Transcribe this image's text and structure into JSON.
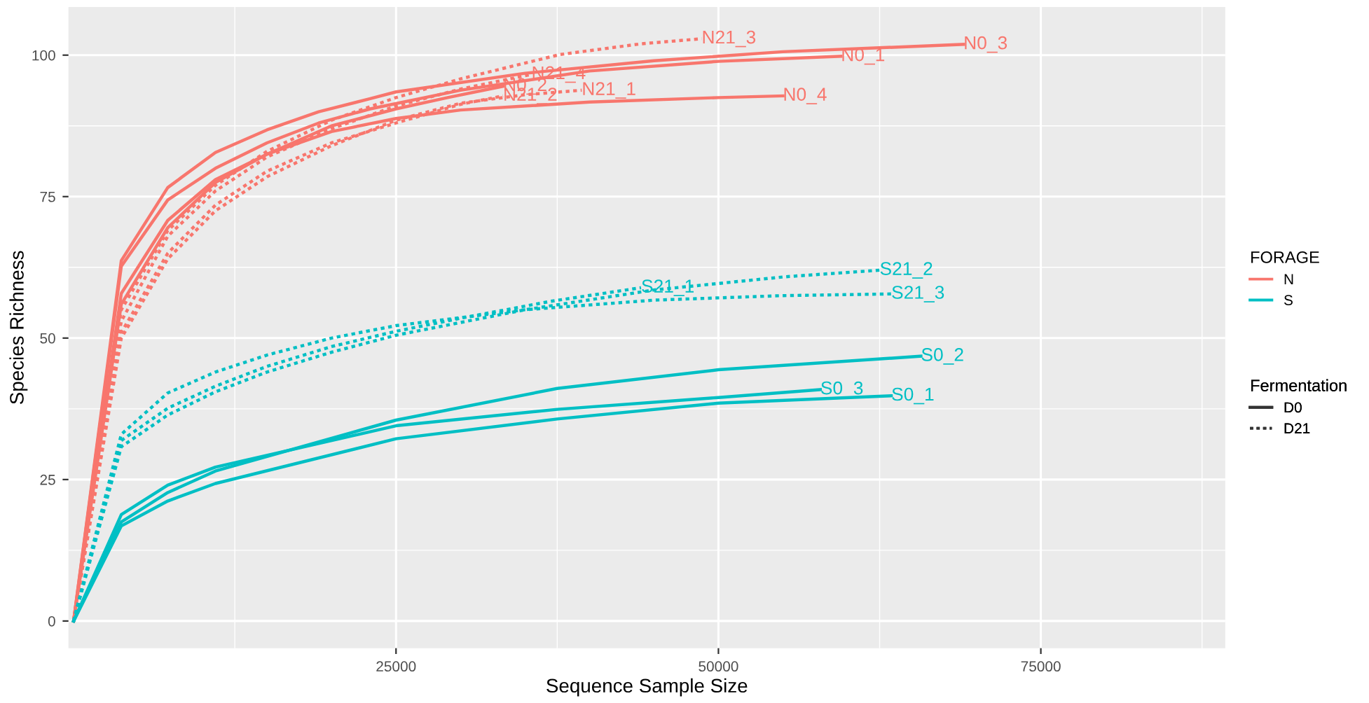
{
  "chart_data": {
    "type": "line",
    "xlabel": "Sequence Sample Size",
    "ylabel": "Species Richness",
    "xlim": [
      -400,
      89300
    ],
    "ylim": [
      -4.8,
      108.5
    ],
    "xticks": [
      25000,
      50000,
      75000
    ],
    "yticks": [
      0,
      25,
      50,
      75,
      100
    ],
    "grid": true,
    "legend": "right",
    "marker": "none",
    "legend_title": [
      "FORAGE",
      "Fermentation"
    ],
    "series": [
      {
        "name": "N",
        "color": "#f8766d"
      },
      {
        "name": "S",
        "color": "#00bfc4"
      },
      {
        "name": "D0",
        "color": "#333333",
        "line_style": "solid"
      },
      {
        "name": "D21",
        "color": "#333333",
        "line_style": "dotted"
      },
      {
        "name": "N0_1",
        "color": "#f8766d",
        "line_style": "solid",
        "x": [
          0,
          3700,
          7300,
          11000,
          15000,
          19000,
          23000,
          30000,
          40000,
          50000,
          59500
        ],
        "values": [
          0,
          62.7,
          74.4,
          80,
          84.5,
          88,
          90.5,
          93.8,
          97.2,
          98.9,
          99.8
        ]
      },
      {
        "name": "N0_2",
        "color": "#f8766d",
        "line_style": "solid",
        "x": [
          0,
          3700,
          7300,
          11000,
          15000,
          20000,
          25000,
          29000,
          33300
        ],
        "values": [
          0,
          57.9,
          70.8,
          78,
          82.5,
          87.5,
          90.5,
          92.5,
          94.5
        ]
      },
      {
        "name": "N0_3",
        "color": "#f8766d",
        "line_style": "solid",
        "x": [
          0,
          3700,
          7300,
          11000,
          15000,
          19000,
          23000,
          25000,
          35000,
          45000,
          55000,
          69000
        ],
        "values": [
          0,
          63.7,
          76.6,
          82.8,
          86.8,
          90,
          92.3,
          93.5,
          96.8,
          99,
          100.6,
          101.9
        ]
      },
      {
        "name": "N0_4",
        "color": "#f8766d",
        "line_style": "solid",
        "x": [
          0,
          3700,
          7300,
          11000,
          15000,
          20000,
          25000,
          30000,
          40000,
          50000,
          55000
        ],
        "values": [
          0,
          56,
          69.5,
          77.5,
          82.5,
          86.5,
          88.8,
          90.3,
          91.7,
          92.5,
          92.8
        ]
      },
      {
        "name": "N21_1",
        "color": "#f8766d",
        "line_style": "dotted",
        "x": [
          0,
          3700,
          7300,
          11000,
          15000,
          20000,
          25000,
          30000,
          35000,
          39400
        ],
        "values": [
          0,
          50,
          64,
          72.5,
          78.5,
          84,
          88.5,
          91.5,
          93,
          93.8
        ]
      },
      {
        "name": "N21_2",
        "color": "#f8766d",
        "line_style": "dotted",
        "x": [
          0,
          3700,
          7300,
          11000,
          15000,
          20000,
          25000,
          30000,
          33300
        ],
        "values": [
          0,
          51,
          65,
          73.5,
          79.5,
          84.5,
          88,
          91.3,
          92.8
        ]
      },
      {
        "name": "N21_3",
        "color": "#f8766d",
        "line_style": "dotted",
        "x": [
          0,
          3700,
          7300,
          11000,
          15000,
          20000,
          25000,
          30000,
          37700,
          44000,
          48700
        ],
        "values": [
          0,
          55,
          69,
          77,
          83,
          88.5,
          92.5,
          95.8,
          100.1,
          102,
          102.9
        ]
      },
      {
        "name": "N21_4",
        "color": "#f8766d",
        "line_style": "dotted",
        "x": [
          0,
          3700,
          7300,
          11000,
          15000,
          20000,
          25000,
          30000,
          35500
        ],
        "values": [
          0,
          53,
          68,
          76,
          82,
          87,
          91,
          94,
          96.6
        ]
      },
      {
        "name": "S0_1",
        "color": "#00bfc4",
        "line_style": "solid",
        "x": [
          0,
          3700,
          7300,
          11000,
          25000,
          37500,
          50000,
          63400
        ],
        "values": [
          0,
          16.8,
          21.2,
          24.3,
          32.2,
          35.7,
          38.5,
          39.8
        ]
      },
      {
        "name": "S0_2",
        "color": "#00bfc4",
        "line_style": "solid",
        "x": [
          0,
          3700,
          7300,
          11000,
          25000,
          37500,
          50000,
          65700
        ],
        "values": [
          0,
          17.5,
          22.7,
          26.5,
          35.5,
          41.1,
          44.4,
          46.8
        ]
      },
      {
        "name": "S0_3",
        "color": "#00bfc4",
        "line_style": "solid",
        "x": [
          0,
          3700,
          7300,
          11000,
          25000,
          37500,
          50000,
          57900
        ],
        "values": [
          0,
          18.8,
          24,
          27.2,
          34.5,
          37.4,
          39.5,
          40.9
        ]
      },
      {
        "name": "S21_1",
        "color": "#00bfc4",
        "line_style": "dotted",
        "x": [
          0,
          3700,
          7300,
          11000,
          15000,
          20000,
          25000,
          30000,
          37000,
          44000
        ],
        "values": [
          0,
          31.9,
          37.6,
          41.5,
          45,
          48.5,
          51.2,
          53.5,
          56.5,
          58.9
        ]
      },
      {
        "name": "S21_2",
        "color": "#00bfc4",
        "line_style": "dotted",
        "x": [
          0,
          3700,
          7300,
          11000,
          15000,
          20000,
          25000,
          35000,
          45000,
          55000,
          62500
        ],
        "values": [
          0,
          30.8,
          36.4,
          40.5,
          44,
          47.5,
          50.5,
          55,
          58.5,
          60.8,
          62
        ]
      },
      {
        "name": "S21_3",
        "color": "#00bfc4",
        "line_style": "dotted",
        "x": [
          0,
          3700,
          7300,
          11000,
          15000,
          20000,
          25000,
          35000,
          45000,
          55000,
          63400
        ],
        "values": [
          0,
          33,
          40.3,
          44,
          47,
          50,
          52.2,
          55,
          56.7,
          57.5,
          57.8
        ]
      }
    ]
  }
}
